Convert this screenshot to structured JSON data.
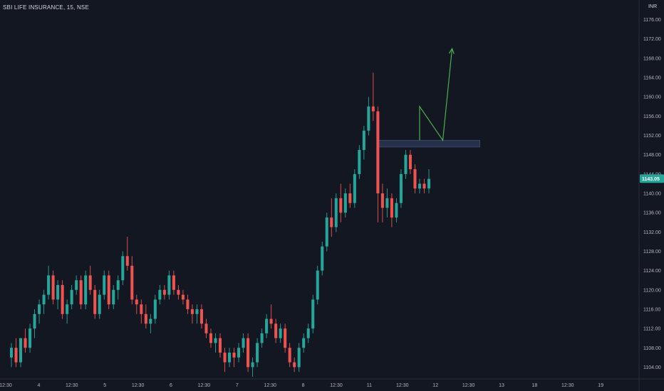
{
  "header": {
    "symbol_line": "SBI LIFE INSURANCE, 15, NSE",
    "currency": "INR"
  },
  "colors": {
    "background": "#131722",
    "up": "#26a69a",
    "down": "#ef5350",
    "annotation_line": "#4caf50",
    "zone_fill": "#2a3552",
    "axis_text": "#b2b5be"
  },
  "chart_data": {
    "type": "candlestick",
    "title": "SBI LIFE INSURANCE, 15, NSE",
    "ylim": [
      1102,
      1178
    ],
    "y_ticks": [
      1104,
      1108,
      1112,
      1116,
      1120,
      1124,
      1128,
      1132,
      1136,
      1140,
      1144,
      1148,
      1152,
      1156,
      1160,
      1164,
      1168,
      1172,
      1176
    ],
    "x_tick_labels": [
      "12:30",
      "4",
      "12:30",
      "5",
      "12:30",
      "6",
      "12:30",
      "7",
      "12:30",
      "8",
      "12:30",
      "11",
      "12:30",
      "12",
      "12:30",
      "13",
      "18",
      "12:30",
      "19"
    ],
    "last_price": 1143.05,
    "grid": false,
    "candles": [
      [
        1106,
        1109,
        1104,
        1108
      ],
      [
        1108,
        1110,
        1104,
        1105
      ],
      [
        1105,
        1110,
        1104,
        1110
      ],
      [
        1110,
        1112,
        1107,
        1108
      ],
      [
        1108,
        1113,
        1107,
        1112
      ],
      [
        1112,
        1116,
        1110,
        1115
      ],
      [
        1115,
        1118,
        1113,
        1117
      ],
      [
        1117,
        1120,
        1115,
        1119
      ],
      [
        1119,
        1125,
        1118,
        1123
      ],
      [
        1123,
        1124,
        1117,
        1118
      ],
      [
        1118,
        1122,
        1116,
        1121
      ],
      [
        1121,
        1122,
        1114,
        1115
      ],
      [
        1115,
        1118,
        1113,
        1117
      ],
      [
        1117,
        1121,
        1116,
        1120
      ],
      [
        1120,
        1123,
        1119,
        1122
      ],
      [
        1122,
        1123,
        1116,
        1117
      ],
      [
        1117,
        1124,
        1116,
        1123
      ],
      [
        1123,
        1125,
        1119,
        1120
      ],
      [
        1120,
        1121,
        1114,
        1115
      ],
      [
        1115,
        1120,
        1114,
        1119
      ],
      [
        1119,
        1124,
        1118,
        1123
      ],
      [
        1123,
        1124,
        1116,
        1117
      ],
      [
        1117,
        1121,
        1116,
        1120
      ],
      [
        1120,
        1123,
        1118,
        1122
      ],
      [
        1122,
        1128,
        1121,
        1127
      ],
      [
        1127,
        1131,
        1124,
        1125
      ],
      [
        1125,
        1127,
        1117,
        1118
      ],
      [
        1118,
        1119,
        1115,
        1117
      ],
      [
        1117,
        1118,
        1113,
        1115
      ],
      [
        1115,
        1117,
        1112,
        1113
      ],
      [
        1113,
        1115,
        1111,
        1114
      ],
      [
        1114,
        1119,
        1113,
        1118
      ],
      [
        1118,
        1121,
        1117,
        1120
      ],
      [
        1120,
        1121,
        1118,
        1119
      ],
      [
        1119,
        1124,
        1118,
        1123
      ],
      [
        1123,
        1124,
        1119,
        1120
      ],
      [
        1120,
        1121,
        1118,
        1119
      ],
      [
        1119,
        1120,
        1117,
        1118
      ],
      [
        1118,
        1119,
        1115,
        1116
      ],
      [
        1116,
        1117,
        1113,
        1115
      ],
      [
        1115,
        1117,
        1113,
        1116
      ],
      [
        1116,
        1117,
        1112,
        1113
      ],
      [
        1113,
        1114,
        1110,
        1111
      ],
      [
        1111,
        1112,
        1108,
        1109
      ],
      [
        1109,
        1111,
        1107,
        1110
      ],
      [
        1110,
        1111,
        1106,
        1107
      ],
      [
        1107,
        1108,
        1103,
        1105
      ],
      [
        1105,
        1108,
        1104,
        1107
      ],
      [
        1107,
        1108,
        1104,
        1106
      ],
      [
        1106,
        1109,
        1105,
        1108
      ],
      [
        1108,
        1111,
        1107,
        1110
      ],
      [
        1110,
        1111,
        1103,
        1104
      ],
      [
        1104,
        1106,
        1102,
        1105
      ],
      [
        1105,
        1110,
        1104,
        1109
      ],
      [
        1109,
        1112,
        1108,
        1111
      ],
      [
        1111,
        1115,
        1110,
        1114
      ],
      [
        1114,
        1117,
        1112,
        1113
      ],
      [
        1113,
        1114,
        1109,
        1110
      ],
      [
        1110,
        1113,
        1109,
        1112
      ],
      [
        1112,
        1113,
        1107,
        1108
      ],
      [
        1108,
        1109,
        1104,
        1105
      ],
      [
        1105,
        1106,
        1103,
        1104
      ],
      [
        1104,
        1109,
        1103,
        1108
      ],
      [
        1108,
        1111,
        1107,
        1110
      ],
      [
        1110,
        1113,
        1109,
        1112
      ],
      [
        1112,
        1119,
        1111,
        1118
      ],
      [
        1118,
        1125,
        1117,
        1124
      ],
      [
        1124,
        1130,
        1123,
        1129
      ],
      [
        1129,
        1136,
        1128,
        1135
      ],
      [
        1135,
        1139,
        1131,
        1133
      ],
      [
        1133,
        1140,
        1132,
        1139
      ],
      [
        1139,
        1142,
        1134,
        1136
      ],
      [
        1136,
        1141,
        1135,
        1140
      ],
      [
        1140,
        1142,
        1137,
        1138
      ],
      [
        1138,
        1145,
        1137,
        1144
      ],
      [
        1144,
        1150,
        1143,
        1149
      ],
      [
        1149,
        1154,
        1147,
        1153
      ],
      [
        1153,
        1160,
        1152,
        1158
      ],
      [
        1158,
        1165,
        1155,
        1157
      ],
      [
        1157,
        1158,
        1134,
        1140
      ],
      [
        1140,
        1142,
        1134,
        1137
      ],
      [
        1137,
        1141,
        1135,
        1139
      ],
      [
        1139,
        1140,
        1133,
        1135
      ],
      [
        1135,
        1139,
        1134,
        1138
      ],
      [
        1138,
        1145,
        1137,
        1144
      ],
      [
        1144,
        1149,
        1143,
        1148
      ],
      [
        1148,
        1149,
        1144,
        1145
      ],
      [
        1145,
        1146,
        1140,
        1141
      ],
      [
        1141,
        1143,
        1140,
        1142
      ],
      [
        1142,
        1143,
        1140,
        1141
      ],
      [
        1141,
        1145,
        1140,
        1143
      ]
    ],
    "annotations": {
      "zone": {
        "x_start_index": 79,
        "x_end_index": 101,
        "y_low": 1149.6,
        "y_high": 1151.0
      },
      "projection_path": [
        {
          "index": 88,
          "price": 1151
        },
        {
          "index": 88,
          "price": 1158
        },
        {
          "index": 93,
          "price": 1151
        },
        {
          "index": 95,
          "price": 1170
        }
      ]
    }
  }
}
